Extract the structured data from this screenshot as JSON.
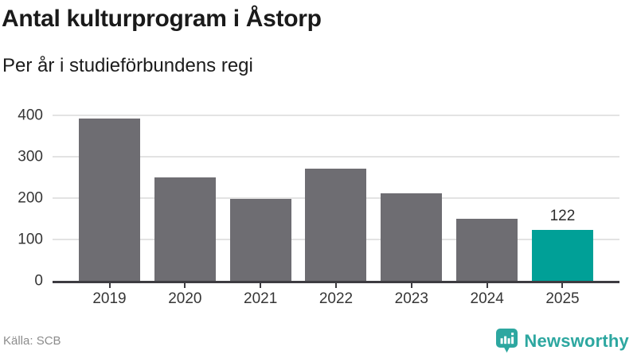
{
  "header": {
    "title": "Antal kulturprogram i Åstorp",
    "subtitle": "Per år i studieförbundens regi"
  },
  "footer": {
    "source": "Källa: SCB",
    "brand": "Newsworthy",
    "brand_icon": "bar-chart-speech-bubble-icon"
  },
  "colors": {
    "bar_default": "#6e6d72",
    "bar_highlight": "#00a097",
    "axis": "#3d3c41",
    "gridline": "#e3e3e3",
    "brand_teal": "#2da7a0",
    "source_gray": "#8c8c8c"
  },
  "chart_data": {
    "type": "bar",
    "title": "Antal kulturprogram i Åstorp",
    "subtitle": "Per år i studieförbundens regi",
    "categories": [
      "2019",
      "2020",
      "2021",
      "2022",
      "2023",
      "2024",
      "2025"
    ],
    "values": [
      392,
      250,
      197,
      270,
      211,
      149,
      122
    ],
    "value_labels": [
      null,
      null,
      null,
      null,
      null,
      null,
      "122"
    ],
    "bar_colors": [
      "#6e6d72",
      "#6e6d72",
      "#6e6d72",
      "#6e6d72",
      "#6e6d72",
      "#6e6d72",
      "#00a097"
    ],
    "highlighted_category": "2025",
    "ylim": [
      0,
      400
    ],
    "yticks": [
      0,
      100,
      200,
      300,
      400
    ],
    "grid": "horizontal",
    "legend": "none",
    "source": "Källa: SCB"
  }
}
